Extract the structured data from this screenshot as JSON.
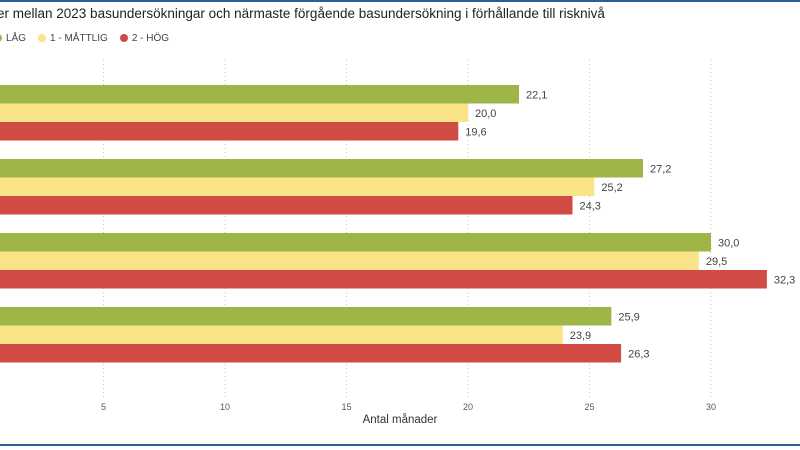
{
  "title": "er mellan 2023 basundersökningar och närmaste förgående basundersökning i förhållande till risknivå",
  "legend": [
    {
      "label": "LÅG",
      "color": "#9eb547"
    },
    {
      "label": "1 - MÅTTLIG",
      "color": "#fbe388"
    },
    {
      "label": "2 - HÖG",
      "color": "#d14b45"
    }
  ],
  "chart_data": {
    "type": "bar",
    "orientation": "horizontal",
    "xlabel": "Antal månader",
    "xlim": [
      0,
      33
    ],
    "xticks": [
      5,
      10,
      15,
      20,
      25,
      30
    ],
    "xtick_labels": [
      "5",
      "10",
      "15",
      "20",
      "25",
      "30"
    ],
    "grid": true,
    "groups": 4,
    "series": [
      {
        "name": "LÅG",
        "color": "#9eb547",
        "values": [
          22.1,
          27.2,
          30.0,
          25.9
        ],
        "labels": [
          "22,1",
          "27,2",
          "30,0",
          "25,9"
        ]
      },
      {
        "name": "1 - MÅTTLIG",
        "color": "#fbe388",
        "values": [
          20.0,
          25.2,
          29.5,
          23.9
        ],
        "labels": [
          "20,0",
          "25,2",
          "29,5",
          "23,9"
        ]
      },
      {
        "name": "2 - HÖG",
        "color": "#d14b45",
        "values": [
          19.6,
          24.3,
          32.3,
          26.3
        ],
        "labels": [
          "19,6",
          "24,3",
          "32,3",
          "26,3"
        ]
      }
    ]
  }
}
